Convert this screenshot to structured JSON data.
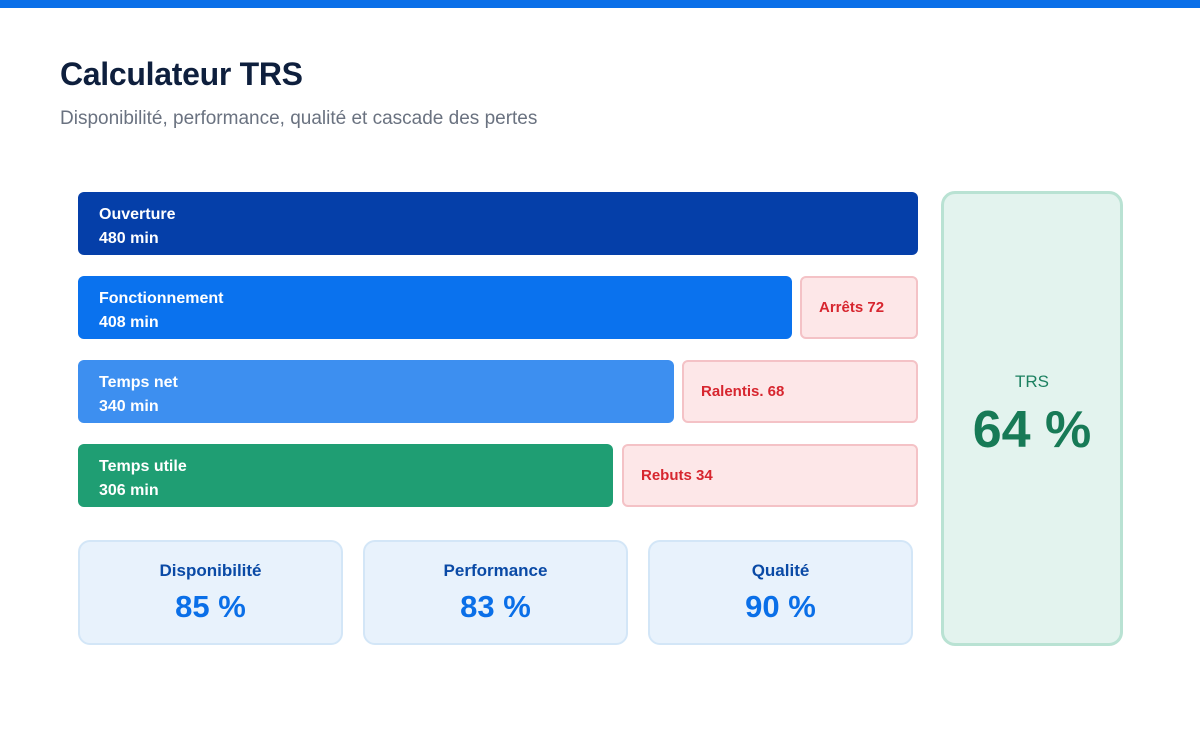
{
  "header": {
    "title": "Calculateur TRS",
    "subtitle": "Disponibilité, performance, qualité et cascade des pertes"
  },
  "cascade": [
    {
      "label": "Ouverture",
      "value": "480 min",
      "minutes": 480
    },
    {
      "label": "Fonctionnement",
      "value": "408 min",
      "minutes": 408,
      "loss": "Arrêts 72"
    },
    {
      "label": "Temps net",
      "value": "340 min",
      "minutes": 340,
      "loss": "Ralentis. 68"
    },
    {
      "label": "Temps utile",
      "value": "306 min",
      "minutes": 306,
      "loss": "Rebuts 34"
    }
  ],
  "kpis": [
    {
      "label": "Disponibilité",
      "value": "85 %"
    },
    {
      "label": "Performance",
      "value": "83 %"
    },
    {
      "label": "Qualité",
      "value": "90 %"
    }
  ],
  "trs": {
    "label": "TRS",
    "value": "64 %"
  },
  "colors": {
    "accent": "#0a6fe8",
    "ouverture": "#053fa9",
    "fonctionnement": "#0a72ee",
    "temps_net": "#3d8ff0",
    "temps_utile": "#1f9e73",
    "loss_text": "#d7262f",
    "trs_text": "#177a56"
  }
}
